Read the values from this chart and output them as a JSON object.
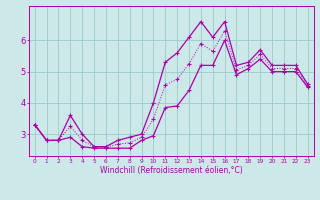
{
  "xlabel": "Windchill (Refroidissement éolien,°C)",
  "bg_color": "#cce8e8",
  "grid_color": "#99cccc",
  "line_color": "#aa00aa",
  "x_hours": [
    0,
    1,
    2,
    3,
    4,
    5,
    6,
    7,
    8,
    9,
    10,
    11,
    12,
    13,
    14,
    15,
    16,
    17,
    18,
    19,
    20,
    21,
    22,
    23
  ],
  "y_max": [
    3.3,
    2.8,
    2.8,
    3.6,
    3.0,
    2.6,
    2.6,
    2.8,
    2.9,
    3.0,
    4.0,
    5.3,
    5.6,
    6.1,
    6.6,
    6.1,
    6.6,
    5.2,
    5.3,
    5.7,
    5.2,
    5.2,
    5.2,
    4.6
  ],
  "y_min": [
    3.3,
    2.8,
    2.8,
    2.9,
    2.6,
    2.55,
    2.55,
    2.55,
    2.55,
    2.8,
    2.95,
    3.85,
    3.9,
    4.4,
    5.2,
    5.2,
    6.0,
    4.9,
    5.1,
    5.4,
    5.0,
    5.0,
    5.0,
    4.5
  ],
  "y_mid": [
    3.3,
    2.8,
    2.8,
    3.25,
    2.8,
    2.58,
    2.58,
    2.68,
    2.72,
    2.9,
    3.48,
    4.58,
    4.75,
    5.25,
    5.9,
    5.65,
    6.3,
    5.05,
    5.2,
    5.55,
    5.1,
    5.1,
    5.1,
    4.55
  ],
  "ylim": [
    2.3,
    7.1
  ],
  "xlim": [
    -0.5,
    23.5
  ],
  "yticks": [
    3,
    4,
    5,
    6
  ],
  "xticks": [
    0,
    1,
    2,
    3,
    4,
    5,
    6,
    7,
    8,
    9,
    10,
    11,
    12,
    13,
    14,
    15,
    16,
    17,
    18,
    19,
    20,
    21,
    22,
    23
  ]
}
